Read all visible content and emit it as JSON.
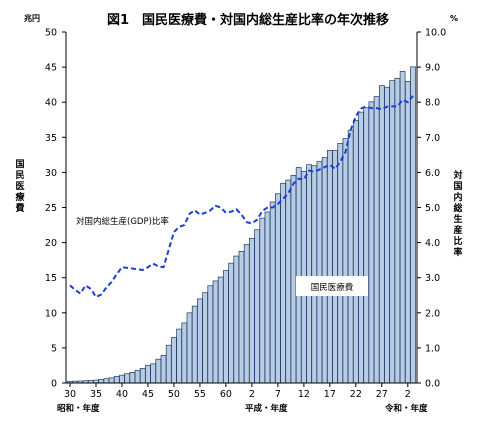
{
  "chart_data": {
    "type": "bar",
    "title": "図1　国民医療費・対国内総生産比率の年次推移",
    "left_axis": {
      "unit": "兆円",
      "label": "国民医療費",
      "ylim": [
        0,
        50
      ],
      "ticks": [
        "0",
        "5",
        "10",
        "15",
        "20",
        "25",
        "30",
        "35",
        "40",
        "45",
        "50"
      ]
    },
    "right_axis": {
      "unit": "%",
      "label": "対国内総生産比率",
      "ylim": [
        0,
        10
      ],
      "ticks": [
        "0.0",
        "1.0",
        "2.0",
        "3.0",
        "4.0",
        "5.0",
        "6.0",
        "7.0",
        "8.0",
        "9.0",
        "10.0"
      ]
    },
    "x_tick_labels": [
      "30",
      "35",
      "40",
      "45",
      "50",
      "55",
      "60",
      "2",
      "7",
      "12",
      "17",
      "22",
      "27",
      "2"
    ],
    "era_labels": [
      "昭和・年度",
      "平成・年度",
      "令和・年度"
    ],
    "categories": [
      "昭和30",
      "昭和31",
      "昭和32",
      "昭和33",
      "昭和34",
      "昭和35",
      "昭和36",
      "昭和37",
      "昭和38",
      "昭和39",
      "昭和40",
      "昭和41",
      "昭和42",
      "昭和43",
      "昭和44",
      "昭和45",
      "昭和46",
      "昭和47",
      "昭和48",
      "昭和49",
      "昭和50",
      "昭和51",
      "昭和52",
      "昭和53",
      "昭和54",
      "昭和55",
      "昭和56",
      "昭和57",
      "昭和58",
      "昭和59",
      "昭和60",
      "昭和61",
      "昭和62",
      "昭和63",
      "平成1",
      "平成2",
      "平成3",
      "平成4",
      "平成5",
      "平成6",
      "平成7",
      "平成8",
      "平成9",
      "平成10",
      "平成11",
      "平成12",
      "平成13",
      "平成14",
      "平成15",
      "平成16",
      "平成17",
      "平成18",
      "平成19",
      "平成20",
      "平成21",
      "平成22",
      "平成23",
      "平成24",
      "平成25",
      "平成26",
      "平成27",
      "平成28",
      "平成29",
      "平成30",
      "令和1",
      "令和2",
      "令和3"
    ],
    "series": [
      {
        "name": "国民医療費",
        "kind": "bar",
        "axis": "left",
        "color": "#b8cce4",
        "values": [
          0.24,
          0.26,
          0.28,
          0.32,
          0.36,
          0.41,
          0.51,
          0.61,
          0.74,
          0.94,
          1.12,
          1.32,
          1.52,
          1.81,
          2.08,
          2.5,
          2.73,
          3.39,
          3.94,
          5.38,
          6.48,
          7.68,
          8.56,
          10.0,
          10.95,
          11.98,
          12.88,
          13.85,
          14.54,
          15.09,
          16.02,
          17.07,
          18.08,
          18.75,
          19.73,
          20.61,
          21.83,
          23.48,
          24.36,
          25.79,
          26.96,
          28.45,
          28.91,
          29.58,
          30.7,
          30.14,
          31.1,
          30.95,
          31.54,
          32.11,
          33.13,
          33.11,
          34.14,
          34.81,
          36.01,
          37.42,
          38.59,
          39.21,
          40.06,
          40.8,
          42.36,
          42.14,
          43.07,
          43.4,
          44.39,
          42.97,
          45.04
        ]
      },
      {
        "name": "対国内総生産(GDP)比率",
        "kind": "line",
        "axis": "right",
        "color": "#1a3fd6",
        "values": [
          2.78,
          2.65,
          2.55,
          2.78,
          2.68,
          2.45,
          2.52,
          2.72,
          2.88,
          3.1,
          3.3,
          3.28,
          3.26,
          3.24,
          3.22,
          3.3,
          3.4,
          3.32,
          3.3,
          3.8,
          4.3,
          4.45,
          4.5,
          4.82,
          4.92,
          4.8,
          4.85,
          4.92,
          5.05,
          5.0,
          4.85,
          4.88,
          4.95,
          4.8,
          4.58,
          4.55,
          4.65,
          4.9,
          5.0,
          5.0,
          5.1,
          5.25,
          5.4,
          5.68,
          5.82,
          5.8,
          6.05,
          6.02,
          6.08,
          6.15,
          6.22,
          6.1,
          6.3,
          6.58,
          7.2,
          7.6,
          7.82,
          7.88,
          7.83,
          7.83,
          7.8,
          7.87,
          7.88,
          7.88,
          8.07,
          8.0,
          8.18
        ]
      }
    ],
    "annotations": [
      "対国内総生産(GDP)比率",
      "国民医療費"
    ]
  }
}
